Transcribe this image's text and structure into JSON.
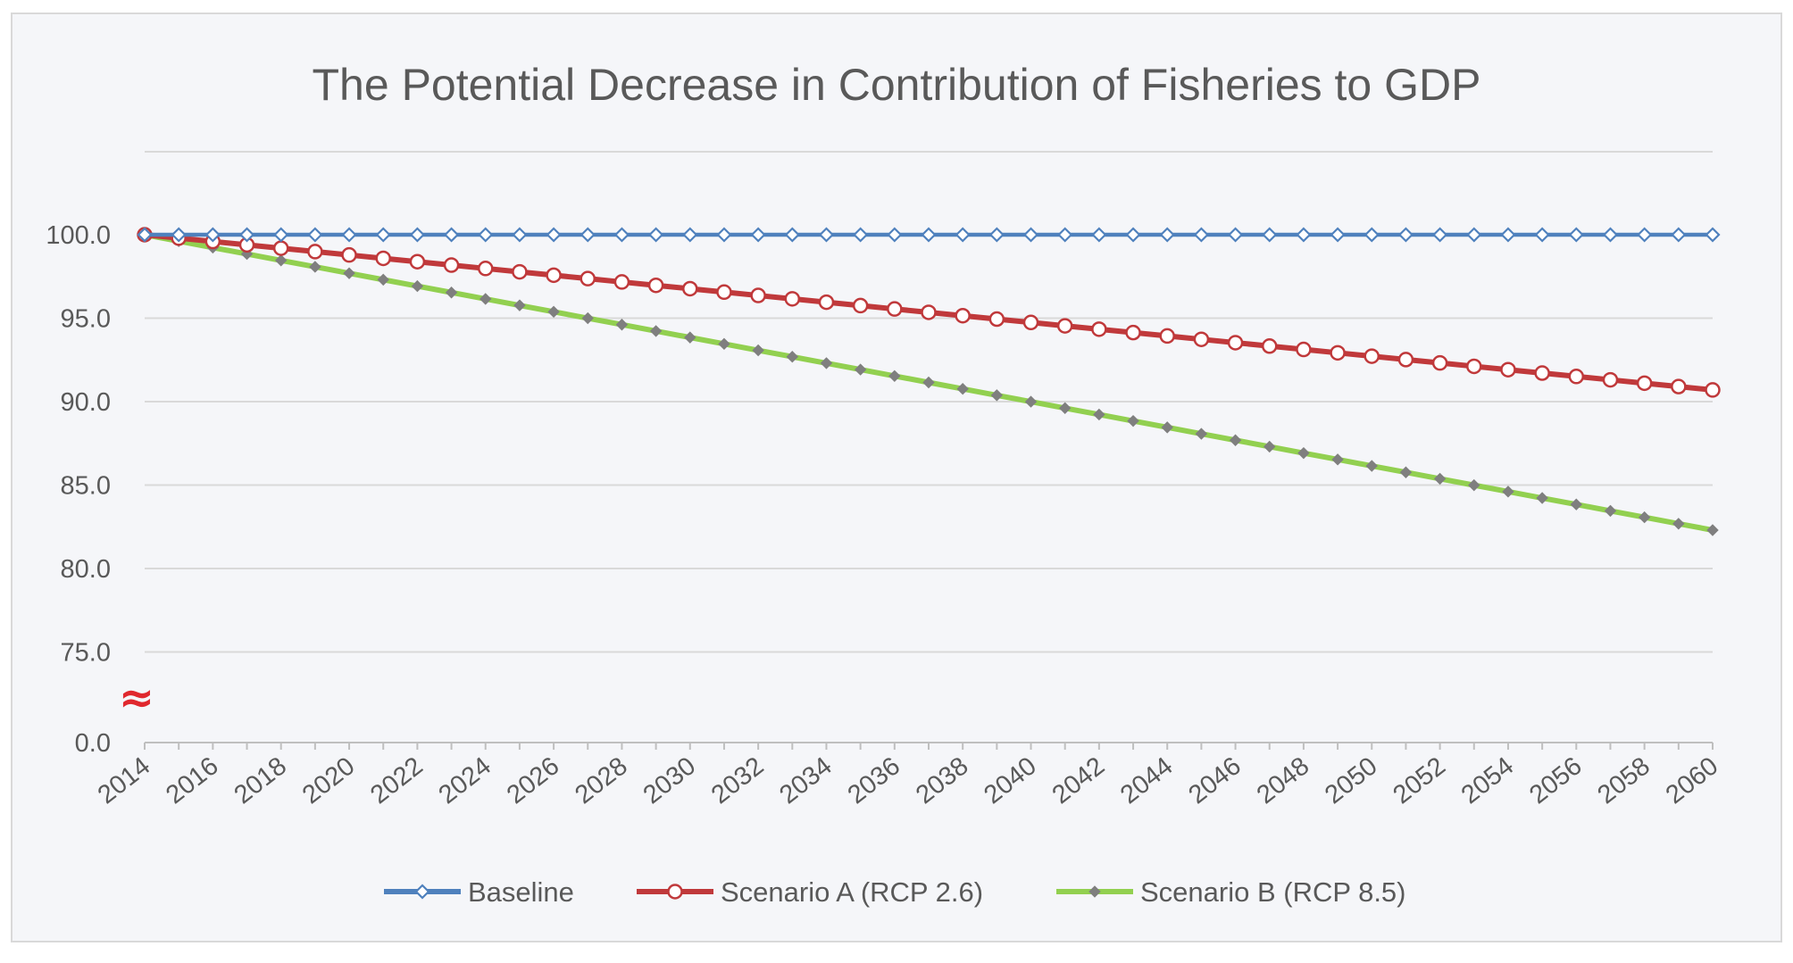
{
  "chart_data": {
    "type": "line",
    "title": "The Potential Decrease in Contribution of Fisheries to GDP",
    "xlabel": "",
    "ylabel": "",
    "x": [
      2014,
      2015,
      2016,
      2017,
      2018,
      2019,
      2020,
      2021,
      2022,
      2023,
      2024,
      2025,
      2026,
      2027,
      2028,
      2029,
      2030,
      2031,
      2032,
      2033,
      2034,
      2035,
      2036,
      2037,
      2038,
      2039,
      2040,
      2041,
      2042,
      2043,
      2044,
      2045,
      2046,
      2047,
      2048,
      2049,
      2050,
      2051,
      2052,
      2053,
      2054,
      2055,
      2056,
      2057,
      2058,
      2059,
      2060
    ],
    "x_tick_labels": [
      "2014",
      "2016",
      "2018",
      "2020",
      "2022",
      "2024",
      "2026",
      "2028",
      "2030",
      "2032",
      "2034",
      "2036",
      "2038",
      "2040",
      "2042",
      "2044",
      "2046",
      "2048",
      "2050",
      "2052",
      "2054",
      "2056",
      "2058",
      "2060"
    ],
    "y_tick_labels": [
      "100.0",
      "95.0",
      "90.0",
      "85.0",
      "80.0",
      "75.0",
      "0.0"
    ],
    "y_axis_break": "≈",
    "ylim": [
      72.5,
      100
    ],
    "grid": true,
    "legend_position": "bottom",
    "series": [
      {
        "name": "Baseline",
        "color": "#4f81bd",
        "marker": "diamond-open",
        "start": 100.0,
        "end": 100.0
      },
      {
        "name": "Scenario A (RCP 2.6)",
        "color": "#c0393b",
        "marker": "circle-open",
        "start": 100.0,
        "end": 90.7
      },
      {
        "name": "Scenario B (RCP 8.5)",
        "color": "#92d050",
        "marker": "diamond-filled",
        "start": 100.0,
        "end": 82.3
      }
    ],
    "colors": {
      "background": "#f5f6f9",
      "grid": "#d9d9d9",
      "text": "#595959",
      "break_symbol": "#e0282e"
    }
  }
}
